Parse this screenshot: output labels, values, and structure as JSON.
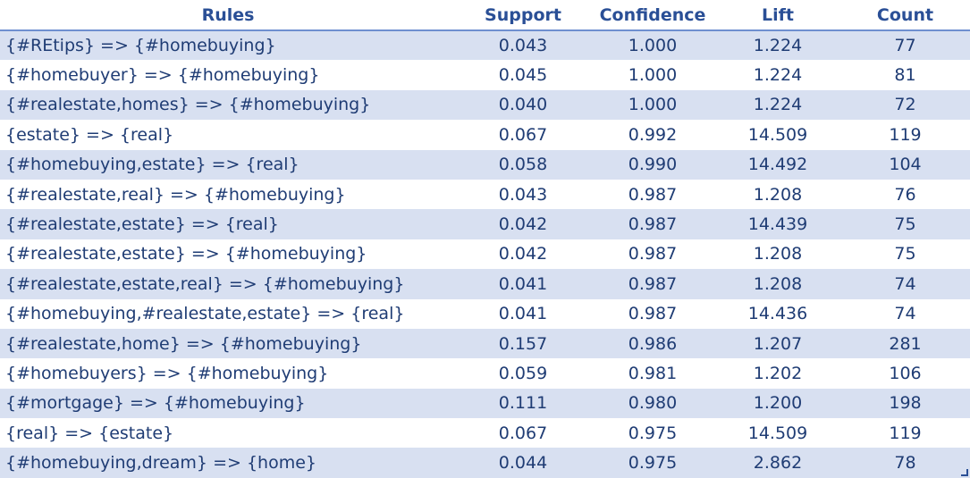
{
  "table": {
    "headers": [
      "Rules",
      "Support",
      "Confidence",
      "Lift",
      "Count"
    ],
    "rows": [
      {
        "rule": "{#REtips} => {#homebuying}",
        "support": "0.043",
        "confidence": "1.000",
        "lift": "1.224",
        "count": "77"
      },
      {
        "rule": "{#homebuyer} => {#homebuying}",
        "support": "0.045",
        "confidence": "1.000",
        "lift": "1.224",
        "count": "81"
      },
      {
        "rule": "{#realestate,homes} => {#homebuying}",
        "support": "0.040",
        "confidence": "1.000",
        "lift": "1.224",
        "count": "72"
      },
      {
        "rule": "{estate} => {real}",
        "support": "0.067",
        "confidence": "0.992",
        "lift": "14.509",
        "count": "119"
      },
      {
        "rule": "{#homebuying,estate}  => {real}",
        "support": "0.058",
        "confidence": "0.990",
        "lift": "14.492",
        "count": "104"
      },
      {
        "rule": "{#realestate,real} => {#homebuying}",
        "support": "0.043",
        "confidence": "0.987",
        "lift": "1.208",
        "count": "76"
      },
      {
        "rule": "{#realestate,estate} => {real}",
        "support": "0.042",
        "confidence": "0.987",
        "lift": "14.439",
        "count": "75"
      },
      {
        "rule": "{#realestate,estate} => {#homebuying}",
        "support": "0.042",
        "confidence": "0.987",
        "lift": "1.208",
        "count": "75"
      },
      {
        "rule": "{#realestate,estate,real} => {#homebuying}",
        "support": "0.041",
        "confidence": "0.987",
        "lift": "1.208",
        "count": "74"
      },
      {
        "rule": "{#homebuying,#realestate,estate} => {real}",
        "support": "0.041",
        "confidence": "0.987",
        "lift": "14.436",
        "count": "74"
      },
      {
        "rule": "{#realestate,home} => {#homebuying}",
        "support": "0.157",
        "confidence": "0.986",
        "lift": "1.207",
        "count": "281"
      },
      {
        "rule": "{#homebuyers} => {#homebuying}",
        "support": "0.059",
        "confidence": "0.981",
        "lift": "1.202",
        "count": "106"
      },
      {
        "rule": "{#mortgage} => {#homebuying}",
        "support": "0.111",
        "confidence": "0.980",
        "lift": "1.200",
        "count": "198"
      },
      {
        "rule": "{real}  => {estate}",
        "support": "0.067",
        "confidence": "0.975",
        "lift": "14.509",
        "count": "119"
      },
      {
        "rule": "{#homebuying,dream} => {home}",
        "support": "0.044",
        "confidence": "0.975",
        "lift": "2.862",
        "count": "78"
      }
    ]
  },
  "colors": {
    "header_text": "#2a4f96",
    "body_text": "#1f3c74",
    "band_fill": "#d8e0f1",
    "header_rule": "#6f8fd0"
  },
  "icons": {
    "resize_handle": "resize-handle-icon"
  }
}
